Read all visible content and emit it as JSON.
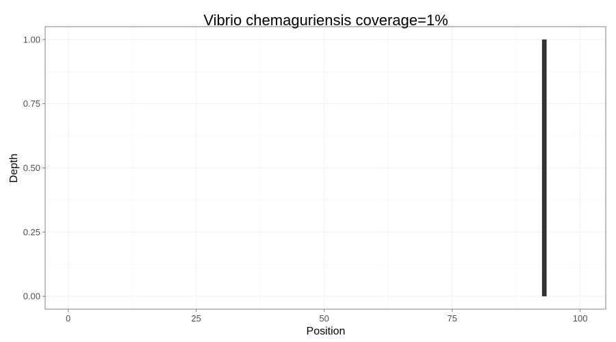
{
  "chart_data": {
    "type": "bar",
    "title": "Vibrio chemaguriensis coverage=1%",
    "xlabel": "Position",
    "ylabel": "Depth",
    "xlim": [
      -4.5,
      105
    ],
    "ylim": [
      -0.05,
      1.05
    ],
    "x_ticks": [
      0,
      25,
      50,
      75,
      100
    ],
    "x_tick_labels": [
      "0",
      "25",
      "50",
      "75",
      "100"
    ],
    "y_ticks": [
      0,
      0.25,
      0.5,
      0.75,
      1.0
    ],
    "y_tick_labels": [
      "0.00",
      "0.25",
      "0.50",
      "0.75",
      "1.00"
    ],
    "grid": true,
    "bar_color": "#333333",
    "points": [
      {
        "x": 93,
        "y": 1.0
      }
    ]
  }
}
